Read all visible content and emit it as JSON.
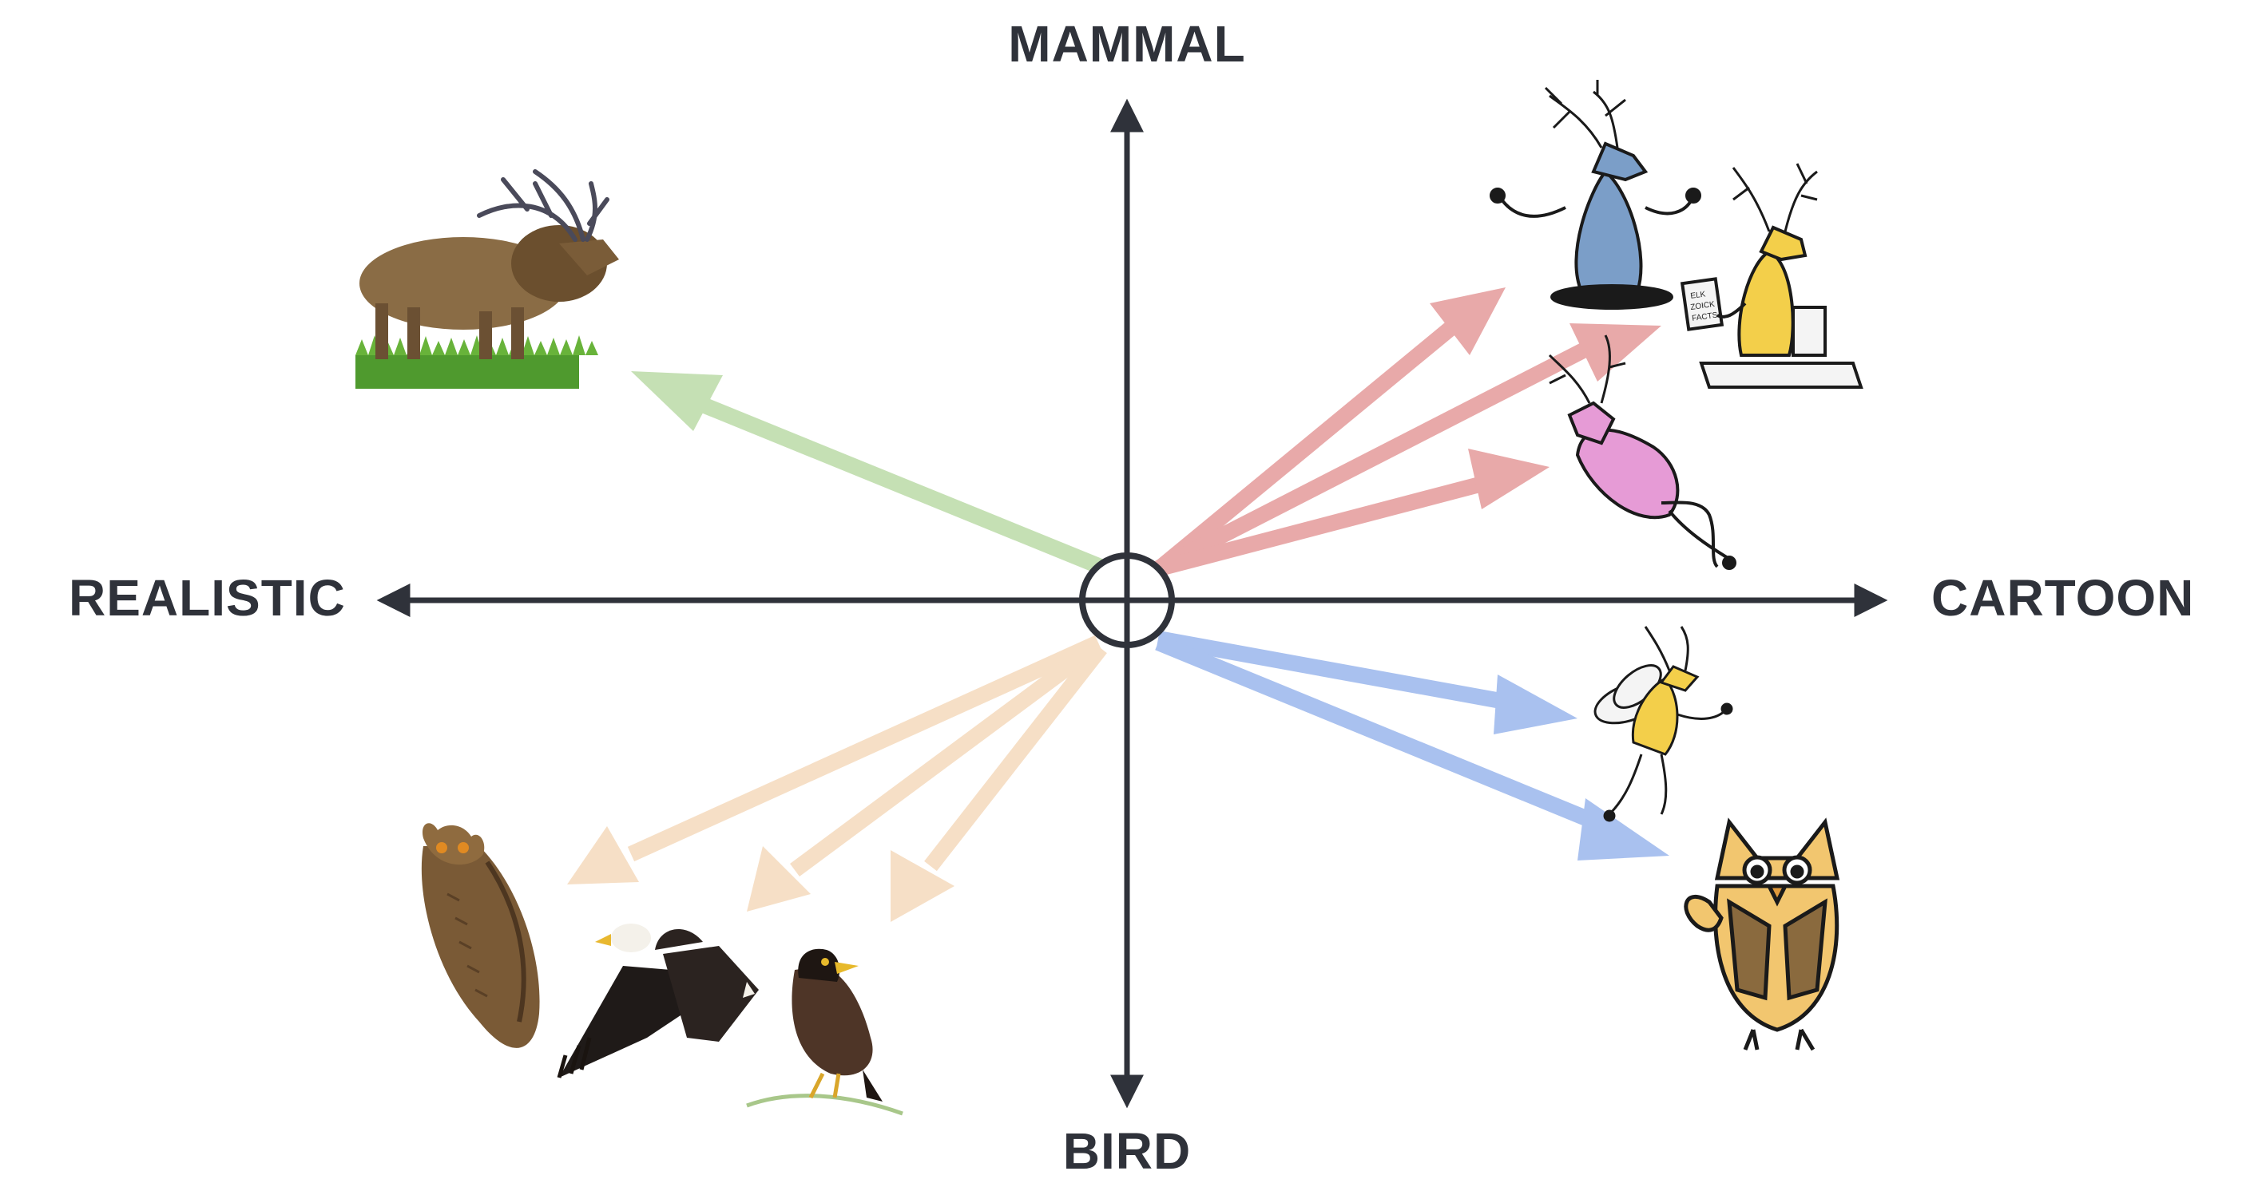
{
  "axes": {
    "top": "MAMMAL",
    "bottom": "BIRD",
    "left": "REALISTIC",
    "right": "CARTOON"
  },
  "colors": {
    "axis": "#2f323a",
    "realistic_mammal_arrow": "#c5e0b4",
    "cartoon_mammal_arrow": "#e8a9a9",
    "realistic_bird_arrow": "#f6dfc6",
    "cartoon_bird_arrow": "#a9c1ef",
    "elk_realistic": "#8a6c45",
    "elk_cartoon_blue": "#7b9ec8",
    "elk_cartoon_yellow": "#f3cf4a",
    "elk_cartoon_pink": "#e69bd6",
    "owl_realistic": "#7a5a36",
    "eagle_realistic": "#2b2320",
    "myna_realistic": "#4e3527",
    "owl_cartoon": "#f2c66f"
  },
  "images": [
    {
      "id": "realistic-elk",
      "icon": "elk-photo",
      "category": "realistic-mammal"
    },
    {
      "id": "meditating-elk",
      "icon": "elk-cartoon-meditating",
      "category": "cartoon-mammal"
    },
    {
      "id": "reading-elk",
      "icon": "elk-cartoon-reading",
      "category": "cartoon-mammal"
    },
    {
      "id": "pink-elk",
      "icon": "elk-cartoon-pink",
      "category": "cartoon-mammal"
    },
    {
      "id": "flying-elk",
      "icon": "elk-cartoon-winged",
      "category": "cartoon-bird"
    },
    {
      "id": "cartoon-owl",
      "icon": "owl-cartoon",
      "category": "cartoon-bird"
    },
    {
      "id": "realistic-owl",
      "icon": "owl-photo",
      "category": "realistic-bird"
    },
    {
      "id": "realistic-eagle",
      "icon": "eagle-photo",
      "category": "realistic-bird"
    },
    {
      "id": "realistic-myna",
      "icon": "myna-photo",
      "category": "realistic-bird"
    }
  ],
  "book_text": [
    "ELK",
    "ZOICK",
    "FACTS"
  ]
}
